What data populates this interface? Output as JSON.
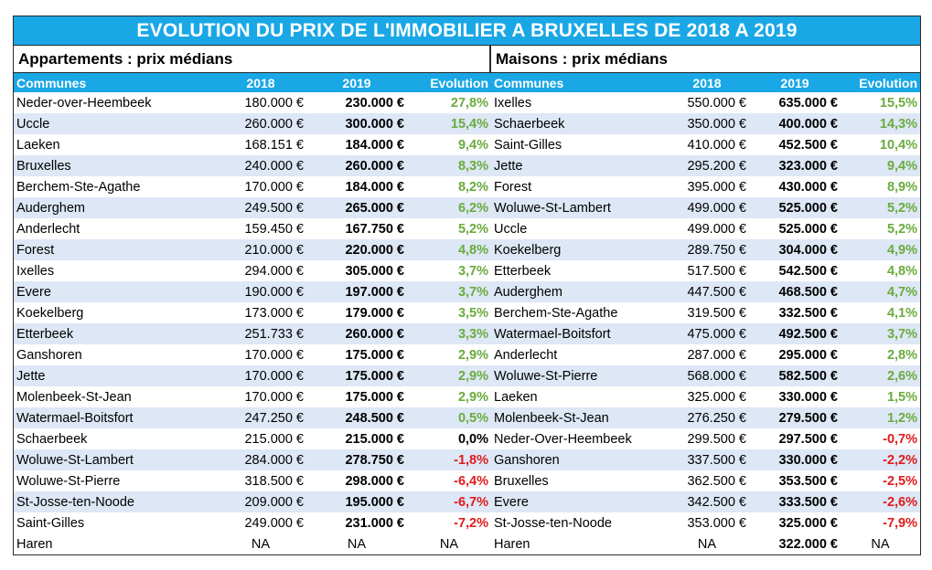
{
  "title": "EVOLUTION DU PRIX DE L'IMMOBILIER A BRUXELLES DE 2018 A 2019",
  "colors": {
    "header_bg": "#1aa7e6",
    "row_alt": "#dde7f5",
    "positive": "#6aab3d",
    "negative": "#e01b1b"
  },
  "appartements": {
    "heading": "Appartements : prix médians",
    "columns": [
      "Communes",
      "2018",
      "2019",
      "Evolution"
    ],
    "rows": [
      [
        "Neder-over-Heembeek",
        "180.000 €",
        "230.000 €",
        "27,8%"
      ],
      [
        "Uccle",
        "260.000 €",
        "300.000 €",
        "15,4%"
      ],
      [
        "Laeken",
        "168.151 €",
        "184.000 €",
        "9,4%"
      ],
      [
        "Bruxelles",
        "240.000 €",
        "260.000 €",
        "8,3%"
      ],
      [
        "Berchem-Ste-Agathe",
        "170.000 €",
        "184.000 €",
        "8,2%"
      ],
      [
        "Auderghem",
        "249.500 €",
        "265.000 €",
        "6,2%"
      ],
      [
        "Anderlecht",
        "159.450 €",
        "167.750 €",
        "5,2%"
      ],
      [
        "Forest",
        "210.000 €",
        "220.000 €",
        "4,8%"
      ],
      [
        "Ixelles",
        "294.000 €",
        "305.000 €",
        "3,7%"
      ],
      [
        "Evere",
        "190.000 €",
        "197.000 €",
        "3,7%"
      ],
      [
        "Koekelberg",
        "173.000 €",
        "179.000 €",
        "3,5%"
      ],
      [
        "Etterbeek",
        "251.733 €",
        "260.000 €",
        "3,3%"
      ],
      [
        "Ganshoren",
        "170.000 €",
        "175.000 €",
        "2,9%"
      ],
      [
        "Jette",
        "170.000 €",
        "175.000 €",
        "2,9%"
      ],
      [
        "Molenbeek-St-Jean",
        "170.000 €",
        "175.000 €",
        "2,9%"
      ],
      [
        "Watermael-Boitsfort",
        "247.250 €",
        "248.500 €",
        "0,5%"
      ],
      [
        "Schaerbeek",
        "215.000 €",
        "215.000 €",
        "0,0%"
      ],
      [
        "Woluwe-St-Lambert",
        "284.000 €",
        "278.750 €",
        "-1,8%"
      ],
      [
        "Woluwe-St-Pierre",
        "318.500 €",
        "298.000 €",
        "-6,4%"
      ],
      [
        "St-Josse-ten-Noode",
        "209.000 €",
        "195.000 €",
        "-6,7%"
      ],
      [
        "Saint-Gilles",
        "249.000 €",
        "231.000 €",
        "-7,2%"
      ],
      [
        "Haren",
        "NA",
        "NA",
        "NA"
      ]
    ]
  },
  "maisons": {
    "heading": "Maisons : prix médians",
    "columns": [
      "Communes",
      "2018",
      "2019",
      "Evolution"
    ],
    "rows": [
      [
        "Ixelles",
        "550.000 €",
        "635.000 €",
        "15,5%"
      ],
      [
        "Schaerbeek",
        "350.000 €",
        "400.000 €",
        "14,3%"
      ],
      [
        "Saint-Gilles",
        "410.000 €",
        "452.500 €",
        "10,4%"
      ],
      [
        "Jette",
        "295.200 €",
        "323.000 €",
        "9,4%"
      ],
      [
        "Forest",
        "395.000 €",
        "430.000 €",
        "8,9%"
      ],
      [
        "Woluwe-St-Lambert",
        "499.000 €",
        "525.000 €",
        "5,2%"
      ],
      [
        "Uccle",
        "499.000 €",
        "525.000 €",
        "5,2%"
      ],
      [
        "Koekelberg",
        "289.750 €",
        "304.000 €",
        "4,9%"
      ],
      [
        "Etterbeek",
        "517.500 €",
        "542.500 €",
        "4,8%"
      ],
      [
        "Auderghem",
        "447.500 €",
        "468.500 €",
        "4,7%"
      ],
      [
        "Berchem-Ste-Agathe",
        "319.500 €",
        "332.500 €",
        "4,1%"
      ],
      [
        "Watermael-Boitsfort",
        "475.000 €",
        "492.500 €",
        "3,7%"
      ],
      [
        "Anderlecht",
        "287.000 €",
        "295.000 €",
        "2,8%"
      ],
      [
        "Woluwe-St-Pierre",
        "568.000 €",
        "582.500 €",
        "2,6%"
      ],
      [
        "Laeken",
        "325.000 €",
        "330.000 €",
        "1,5%"
      ],
      [
        "Molenbeek-St-Jean",
        "276.250 €",
        "279.500 €",
        "1,2%"
      ],
      [
        "Neder-Over-Heembeek",
        "299.500 €",
        "297.500 €",
        "-0,7%"
      ],
      [
        "Ganshoren",
        "337.500 €",
        "330.000 €",
        "-2,2%"
      ],
      [
        "Bruxelles",
        "362.500 €",
        "353.500 €",
        "-2,5%"
      ],
      [
        "Evere",
        "342.500 €",
        "333.500 €",
        "-2,6%"
      ],
      [
        "St-Josse-ten-Noode",
        "353.000 €",
        "325.000 €",
        "-7,9%"
      ],
      [
        "Haren",
        "NA",
        "322.000 €",
        "NA"
      ]
    ]
  }
}
